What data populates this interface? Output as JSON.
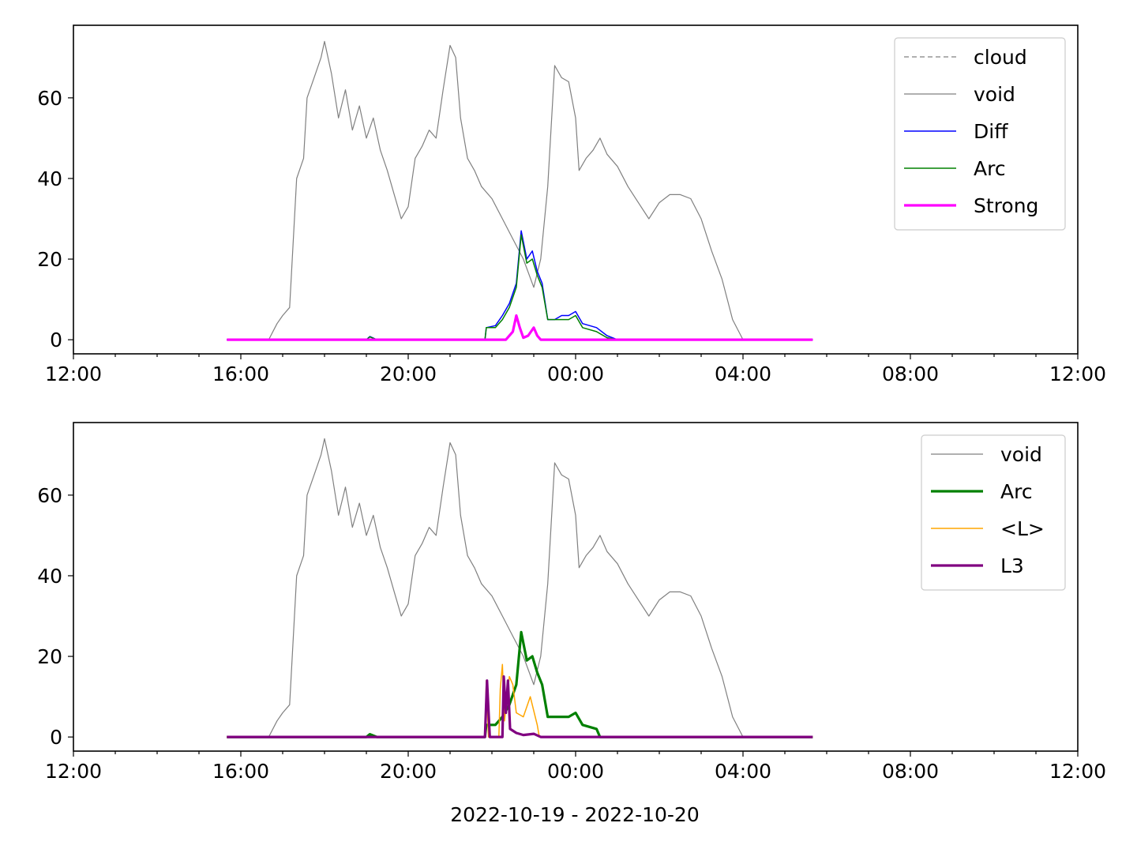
{
  "figure": {
    "xlabel": "2022-10-19 - 2022-10-20"
  },
  "chart_data": [
    {
      "type": "line",
      "panel": "top",
      "x_unit": "time (2022-10-19 12:00 to 2022-10-20 12:00)",
      "xlim": [
        "12:00",
        "12:00 (+1d)"
      ],
      "x_ticks": [
        "12:00",
        "16:00",
        "20:00",
        "00:00",
        "04:00",
        "08:00",
        "12:00"
      ],
      "ylim": [
        -3.5,
        78
      ],
      "y_ticks": [
        0,
        20,
        40,
        60
      ],
      "legend": {
        "position": "upper right",
        "entries": [
          "cloud",
          "void",
          "Diff",
          "Arc",
          "Strong"
        ]
      },
      "series": [
        {
          "name": "cloud",
          "color": "#808080",
          "style": "dashed",
          "width": 1.2,
          "points": []
        },
        {
          "name": "void",
          "color": "#808080",
          "style": "solid",
          "width": 1.2,
          "points": [
            [
              "15:40",
              0
            ],
            [
              "16:40",
              0
            ],
            [
              "16:52",
              4
            ],
            [
              "17:00",
              6
            ],
            [
              "17:10",
              8
            ],
            [
              "17:20",
              40
            ],
            [
              "17:30",
              45
            ],
            [
              "17:35",
              60
            ],
            [
              "17:45",
              65
            ],
            [
              "17:55",
              70
            ],
            [
              "18:00",
              74
            ],
            [
              "18:10",
              66
            ],
            [
              "18:20",
              55
            ],
            [
              "18:30",
              62
            ],
            [
              "18:40",
              52
            ],
            [
              "18:50",
              58
            ],
            [
              "19:00",
              50
            ],
            [
              "19:10",
              55
            ],
            [
              "19:20",
              47
            ],
            [
              "19:30",
              42
            ],
            [
              "19:40",
              36
            ],
            [
              "19:50",
              30
            ],
            [
              "20:00",
              33
            ],
            [
              "20:10",
              45
            ],
            [
              "20:20",
              48
            ],
            [
              "20:30",
              52
            ],
            [
              "20:40",
              50
            ],
            [
              "20:50",
              62
            ],
            [
              "21:00",
              73
            ],
            [
              "21:08",
              70
            ],
            [
              "21:15",
              55
            ],
            [
              "21:25",
              45
            ],
            [
              "21:35",
              42
            ],
            [
              "21:45",
              38
            ],
            [
              "22:00",
              35
            ],
            [
              "22:15",
              30
            ],
            [
              "22:30",
              25
            ],
            [
              "22:45",
              20
            ],
            [
              "23:00",
              13
            ],
            [
              "23:10",
              20
            ],
            [
              "23:20",
              38
            ],
            [
              "23:30",
              68
            ],
            [
              "23:40",
              65
            ],
            [
              "23:50",
              64
            ],
            [
              "00:00",
              55
            ],
            [
              "00:05",
              42
            ],
            [
              "00:15",
              45
            ],
            [
              "00:25",
              47
            ],
            [
              "00:35",
              50
            ],
            [
              "00:45",
              46
            ],
            [
              "01:00",
              43
            ],
            [
              "01:15",
              38
            ],
            [
              "01:30",
              34
            ],
            [
              "01:45",
              30
            ],
            [
              "02:00",
              34
            ],
            [
              "02:15",
              36
            ],
            [
              "02:30",
              36
            ],
            [
              "02:45",
              35
            ],
            [
              "03:00",
              30
            ],
            [
              "03:15",
              22
            ],
            [
              "03:30",
              15
            ],
            [
              "03:45",
              5
            ],
            [
              "04:00",
              0
            ],
            [
              "05:40",
              0
            ]
          ]
        },
        {
          "name": "Diff",
          "color": "#0000ff",
          "style": "solid",
          "width": 1.5,
          "points": [
            [
              "15:40",
              0
            ],
            [
              "19:00",
              0
            ],
            [
              "19:05",
              0.8
            ],
            [
              "19:15",
              0
            ],
            [
              "21:50",
              0
            ],
            [
              "21:52",
              3
            ],
            [
              "22:05",
              3.5
            ],
            [
              "22:15",
              6
            ],
            [
              "22:25",
              9
            ],
            [
              "22:35",
              14
            ],
            [
              "22:42",
              27
            ],
            [
              "22:50",
              20
            ],
            [
              "22:58",
              22
            ],
            [
              "23:05",
              17
            ],
            [
              "23:12",
              14
            ],
            [
              "23:20",
              5
            ],
            [
              "23:30",
              5
            ],
            [
              "23:40",
              6
            ],
            [
              "23:50",
              6
            ],
            [
              "00:00",
              7
            ],
            [
              "00:10",
              4
            ],
            [
              "00:30",
              3
            ],
            [
              "00:45",
              1
            ],
            [
              "01:00",
              0
            ],
            [
              "05:40",
              0
            ]
          ]
        },
        {
          "name": "Arc",
          "color": "#008000",
          "style": "solid",
          "width": 1.5,
          "points": [
            [
              "15:40",
              0
            ],
            [
              "19:00",
              0
            ],
            [
              "19:05",
              0.7
            ],
            [
              "19:15",
              0
            ],
            [
              "21:50",
              0
            ],
            [
              "21:52",
              3
            ],
            [
              "22:05",
              3
            ],
            [
              "22:15",
              5
            ],
            [
              "22:25",
              8
            ],
            [
              "22:35",
              13
            ],
            [
              "22:42",
              26
            ],
            [
              "22:50",
              19
            ],
            [
              "22:58",
              20
            ],
            [
              "23:05",
              16
            ],
            [
              "23:12",
              13
            ],
            [
              "23:20",
              5
            ],
            [
              "23:30",
              5
            ],
            [
              "23:40",
              5
            ],
            [
              "23:50",
              5
            ],
            [
              "00:00",
              6
            ],
            [
              "00:10",
              3
            ],
            [
              "00:30",
              2
            ],
            [
              "00:45",
              0.5
            ],
            [
              "01:00",
              0
            ],
            [
              "05:40",
              0
            ]
          ]
        },
        {
          "name": "Strong",
          "color": "#ff00ff",
          "style": "solid",
          "width": 3.2,
          "points": [
            [
              "15:40",
              0
            ],
            [
              "22:20",
              0
            ],
            [
              "22:30",
              2
            ],
            [
              "22:35",
              6
            ],
            [
              "22:40",
              3
            ],
            [
              "22:45",
              0.5
            ],
            [
              "22:52",
              1
            ],
            [
              "23:00",
              3
            ],
            [
              "23:05",
              1
            ],
            [
              "23:10",
              0
            ],
            [
              "05:40",
              0
            ]
          ]
        }
      ]
    },
    {
      "type": "line",
      "panel": "bottom",
      "x_unit": "time (2022-10-19 12:00 to 2022-10-20 12:00)",
      "xlim": [
        "12:00",
        "12:00 (+1d)"
      ],
      "x_ticks": [
        "12:00",
        "16:00",
        "20:00",
        "00:00",
        "04:00",
        "08:00",
        "12:00"
      ],
      "ylim": [
        -3.5,
        78
      ],
      "y_ticks": [
        0,
        20,
        40,
        60
      ],
      "legend": {
        "position": "upper right",
        "entries": [
          "void",
          "Arc",
          "<L>",
          "L3"
        ]
      },
      "series": [
        {
          "name": "void",
          "color": "#808080",
          "style": "solid",
          "width": 1.2,
          "points": [
            [
              "15:40",
              0
            ],
            [
              "16:40",
              0
            ],
            [
              "16:52",
              4
            ],
            [
              "17:00",
              6
            ],
            [
              "17:10",
              8
            ],
            [
              "17:20",
              40
            ],
            [
              "17:30",
              45
            ],
            [
              "17:35",
              60
            ],
            [
              "17:45",
              65
            ],
            [
              "17:55",
              70
            ],
            [
              "18:00",
              74
            ],
            [
              "18:10",
              66
            ],
            [
              "18:20",
              55
            ],
            [
              "18:30",
              62
            ],
            [
              "18:40",
              52
            ],
            [
              "18:50",
              58
            ],
            [
              "19:00",
              50
            ],
            [
              "19:10",
              55
            ],
            [
              "19:20",
              47
            ],
            [
              "19:30",
              42
            ],
            [
              "19:40",
              36
            ],
            [
              "19:50",
              30
            ],
            [
              "20:00",
              33
            ],
            [
              "20:10",
              45
            ],
            [
              "20:20",
              48
            ],
            [
              "20:30",
              52
            ],
            [
              "20:40",
              50
            ],
            [
              "20:50",
              62
            ],
            [
              "21:00",
              73
            ],
            [
              "21:08",
              70
            ],
            [
              "21:15",
              55
            ],
            [
              "21:25",
              45
            ],
            [
              "21:35",
              42
            ],
            [
              "21:45",
              38
            ],
            [
              "22:00",
              35
            ],
            [
              "22:15",
              30
            ],
            [
              "22:30",
              25
            ],
            [
              "22:45",
              20
            ],
            [
              "23:00",
              13
            ],
            [
              "23:10",
              20
            ],
            [
              "23:20",
              38
            ],
            [
              "23:30",
              68
            ],
            [
              "23:40",
              65
            ],
            [
              "23:50",
              64
            ],
            [
              "00:00",
              55
            ],
            [
              "00:05",
              42
            ],
            [
              "00:15",
              45
            ],
            [
              "00:25",
              47
            ],
            [
              "00:35",
              50
            ],
            [
              "00:45",
              46
            ],
            [
              "01:00",
              43
            ],
            [
              "01:15",
              38
            ],
            [
              "01:30",
              34
            ],
            [
              "01:45",
              30
            ],
            [
              "02:00",
              34
            ],
            [
              "02:15",
              36
            ],
            [
              "02:30",
              36
            ],
            [
              "02:45",
              35
            ],
            [
              "03:00",
              30
            ],
            [
              "03:15",
              22
            ],
            [
              "03:30",
              15
            ],
            [
              "03:45",
              5
            ],
            [
              "04:00",
              0
            ],
            [
              "05:40",
              0
            ]
          ]
        },
        {
          "name": "Arc",
          "color": "#008000",
          "style": "solid",
          "width": 3.2,
          "points": [
            [
              "15:40",
              0
            ],
            [
              "19:00",
              0
            ],
            [
              "19:05",
              0.7
            ],
            [
              "19:15",
              0
            ],
            [
              "21:50",
              0
            ],
            [
              "21:52",
              3
            ],
            [
              "22:05",
              3
            ],
            [
              "22:15",
              5
            ],
            [
              "22:25",
              8
            ],
            [
              "22:35",
              13
            ],
            [
              "22:42",
              26
            ],
            [
              "22:50",
              19
            ],
            [
              "22:58",
              20
            ],
            [
              "23:05",
              16
            ],
            [
              "23:12",
              13
            ],
            [
              "23:20",
              5
            ],
            [
              "23:30",
              5
            ],
            [
              "23:40",
              5
            ],
            [
              "23:50",
              5
            ],
            [
              "00:00",
              6
            ],
            [
              "00:10",
              3
            ],
            [
              "00:30",
              2
            ],
            [
              "00:35",
              0
            ],
            [
              "05:40",
              0
            ]
          ]
        },
        {
          "name": "<L>",
          "color": "#ffa500",
          "style": "solid",
          "width": 1.5,
          "points": [
            [
              "15:40",
              0
            ],
            [
              "21:50",
              0
            ],
            [
              "21:52",
              14
            ],
            [
              "21:55",
              0
            ],
            [
              "22:10",
              0
            ],
            [
              "22:12",
              12
            ],
            [
              "22:15",
              18
            ],
            [
              "22:18",
              4
            ],
            [
              "22:25",
              15
            ],
            [
              "22:30",
              13
            ],
            [
              "22:35",
              6
            ],
            [
              "22:45",
              5
            ],
            [
              "22:55",
              10
            ],
            [
              "23:05",
              3
            ],
            [
              "23:08",
              0
            ],
            [
              "05:40",
              0
            ]
          ]
        },
        {
          "name": "L3",
          "color": "#800080",
          "style": "solid",
          "width": 3.2,
          "points": [
            [
              "15:40",
              0
            ],
            [
              "21:50",
              0
            ],
            [
              "21:53",
              14
            ],
            [
              "21:57",
              0
            ],
            [
              "22:15",
              0
            ],
            [
              "22:17",
              15
            ],
            [
              "22:20",
              6
            ],
            [
              "22:23",
              14
            ],
            [
              "22:26",
              2
            ],
            [
              "22:35",
              1
            ],
            [
              "22:45",
              0.5
            ],
            [
              "23:00",
              0.8
            ],
            [
              "23:10",
              0
            ],
            [
              "05:40",
              0
            ]
          ]
        }
      ]
    }
  ]
}
